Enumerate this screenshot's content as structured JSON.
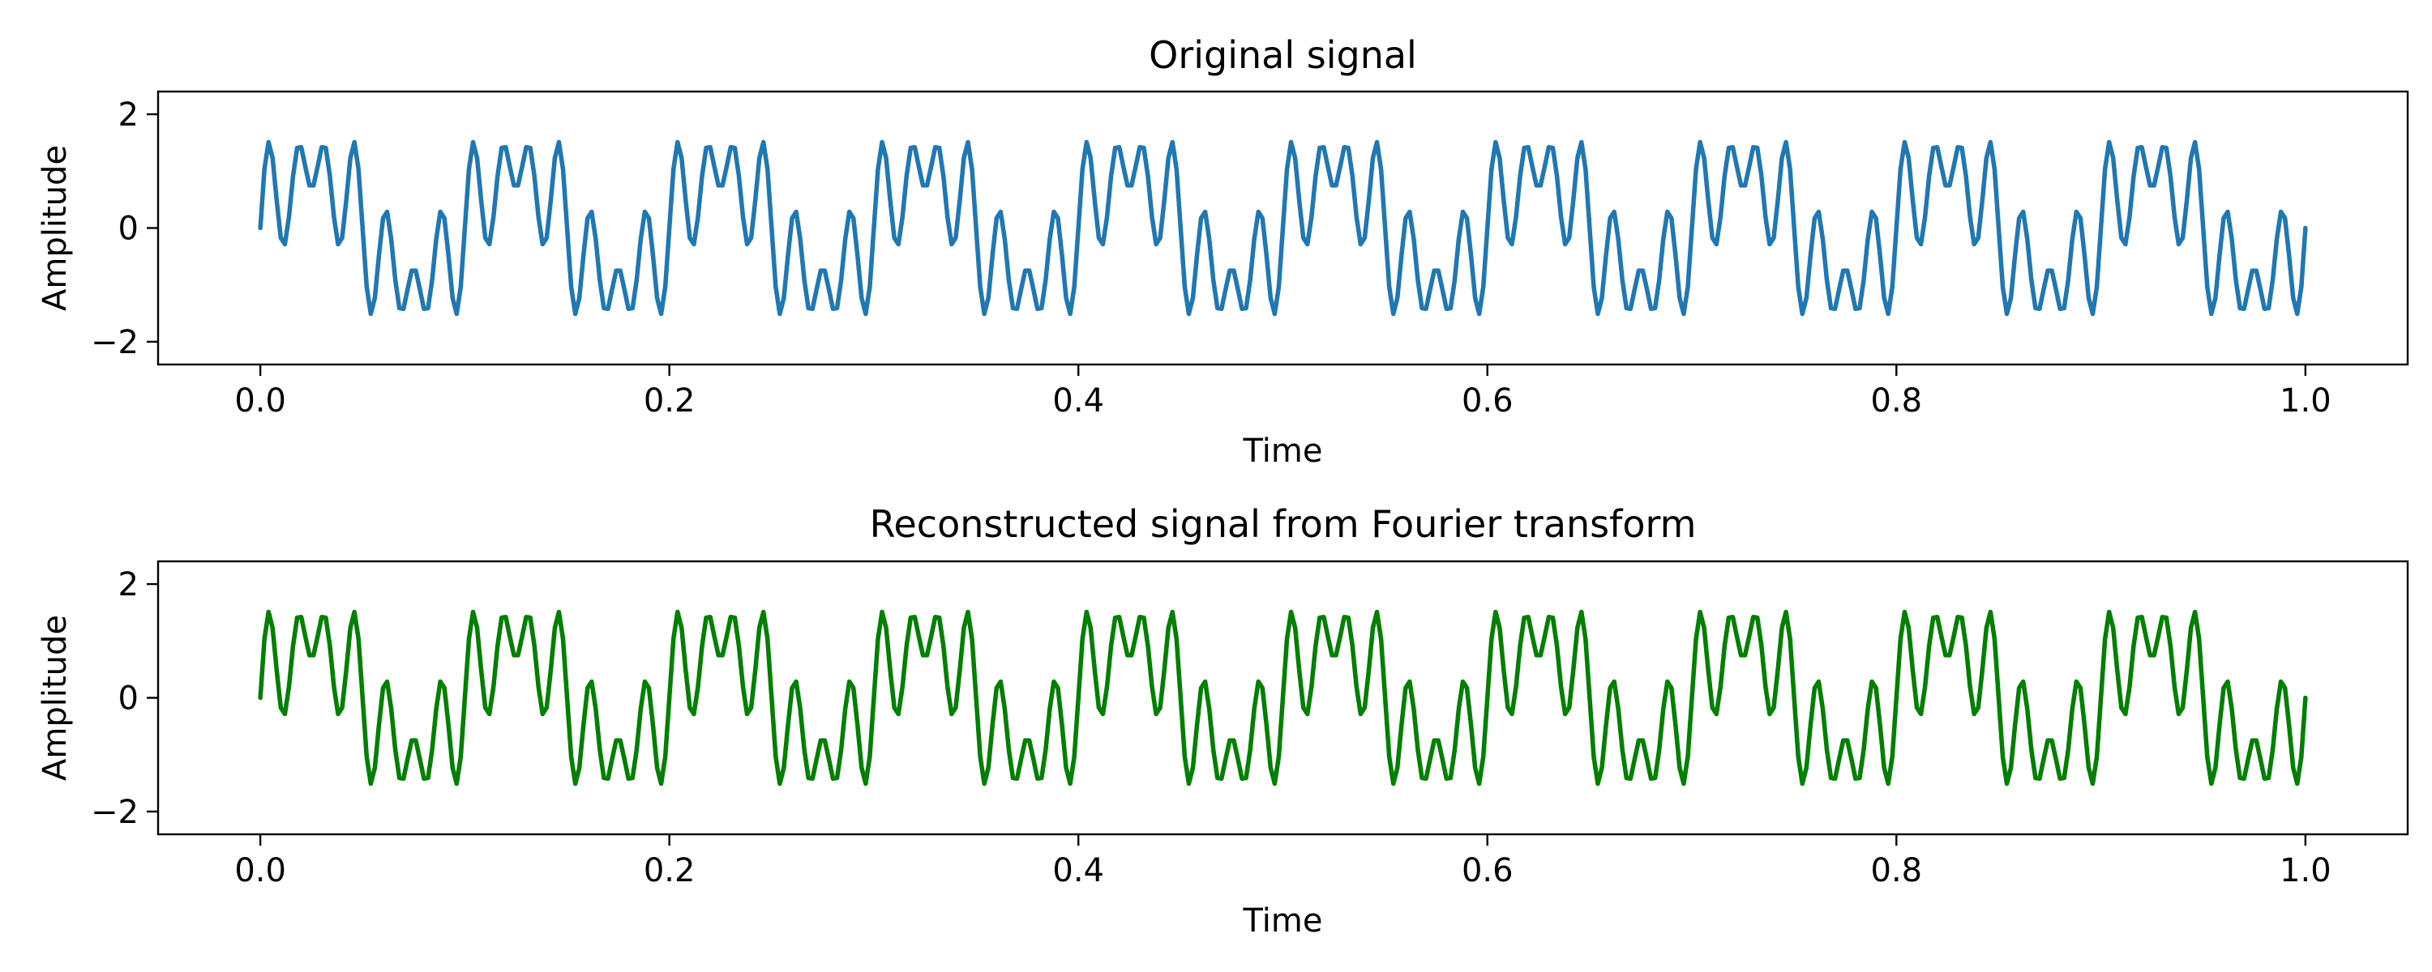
{
  "chart_data": [
    {
      "type": "line",
      "title": "Original signal",
      "xlabel": "Time",
      "ylabel": "Amplitude",
      "xlim": [
        -0.05,
        1.05
      ],
      "ylim": [
        -2.4,
        2.4
      ],
      "xticks": [
        0.0,
        0.2,
        0.4,
        0.6,
        0.8,
        1.0
      ],
      "xtick_labels": [
        "0.0",
        "0.2",
        "0.4",
        "0.6",
        "0.8",
        "1.0"
      ],
      "yticks": [
        -2,
        0,
        2
      ],
      "ytick_labels": [
        "−2",
        "0",
        "2"
      ],
      "grid": false,
      "legend": "none",
      "color": "#1f77b4",
      "series": [
        {
          "signal": "sin(2π·10·t) + 0.5·sin(2π·50·t) + 0.8·sin(2π·70·t)",
          "t_start": 0,
          "t_end": 1,
          "samples": 501,
          "components": [
            {
              "frequency": 10,
              "amplitude": 1.0
            },
            {
              "frequency": 50,
              "amplitude": 0.5
            },
            {
              "frequency": 70,
              "amplitude": 0.8
            }
          ]
        }
      ]
    },
    {
      "type": "line",
      "title": "Reconstructed signal from Fourier transform",
      "xlabel": "Time",
      "ylabel": "Amplitude",
      "xlim": [
        -0.05,
        1.05
      ],
      "ylim": [
        -2.4,
        2.4
      ],
      "xticks": [
        0.0,
        0.2,
        0.4,
        0.6,
        0.8,
        1.0
      ],
      "xtick_labels": [
        "0.0",
        "0.2",
        "0.4",
        "0.6",
        "0.8",
        "1.0"
      ],
      "yticks": [
        -2,
        0,
        2
      ],
      "ytick_labels": [
        "−2",
        "0",
        "2"
      ],
      "grid": false,
      "legend": "none",
      "color": "#008000",
      "series": [
        {
          "signal": "sin(2π·10·t) + 0.5·sin(2π·50·t) + 0.8·sin(2π·70·t)",
          "t_start": 0,
          "t_end": 1,
          "samples": 501,
          "components": [
            {
              "frequency": 10,
              "amplitude": 1.0
            },
            {
              "frequency": 50,
              "amplitude": 0.5
            },
            {
              "frequency": 70,
              "amplitude": 0.8
            }
          ]
        }
      ]
    }
  ]
}
